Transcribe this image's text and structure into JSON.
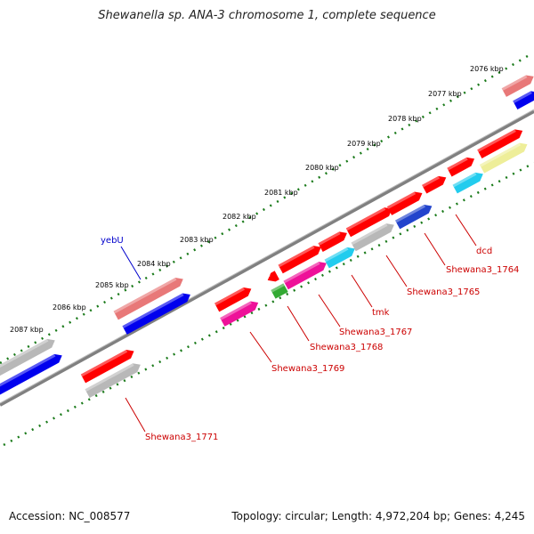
{
  "title": "Shewanella sp. ANA-3 chromosome 1, complete sequence",
  "footer": {
    "accession": "Accession: NC_008577",
    "summary": "Topology: circular; Length: 4,972,204 bp; Genes: 4,245"
  },
  "kbp_ticks": [
    {
      "label": "2076 kbp"
    },
    {
      "label": "2077 kbp"
    },
    {
      "label": "2078 kbp"
    },
    {
      "label": "2079 kbp"
    },
    {
      "label": "2080 kbp"
    },
    {
      "label": "2081 kbp"
    },
    {
      "label": "2082 kbp"
    },
    {
      "label": "2083 kbp"
    },
    {
      "label": "2084 kbp"
    },
    {
      "label": "2085 kbp"
    },
    {
      "label": "2086 kbp"
    },
    {
      "label": "2087 kbp"
    }
  ],
  "gene_labels": [
    {
      "text": "yebU",
      "color": "#0000cc"
    },
    {
      "text": "dcd",
      "color": "#cc0000"
    },
    {
      "text": "Shewana3_1764",
      "color": "#cc0000"
    },
    {
      "text": "Shewana3_1765",
      "color": "#cc0000"
    },
    {
      "text": "tmk",
      "color": "#cc0000"
    },
    {
      "text": "Shewana3_1767",
      "color": "#cc0000"
    },
    {
      "text": "Shewana3_1768",
      "color": "#cc0000"
    },
    {
      "text": "Shewana3_1769",
      "color": "#cc0000"
    },
    {
      "text": "Shewana3_1771",
      "color": "#cc0000"
    }
  ],
  "colors": {
    "backbone": "#808080",
    "tick_dots": "#1a7a1a",
    "red": "#ff0000",
    "pink": "#e87878",
    "blue": "#0000ee",
    "magenta": "#ee1199",
    "cyan": "#22ccee",
    "gray": "#b8b8b8",
    "yellow": "#eeee99",
    "navy": "#2244cc",
    "green": "#33aa33"
  }
}
